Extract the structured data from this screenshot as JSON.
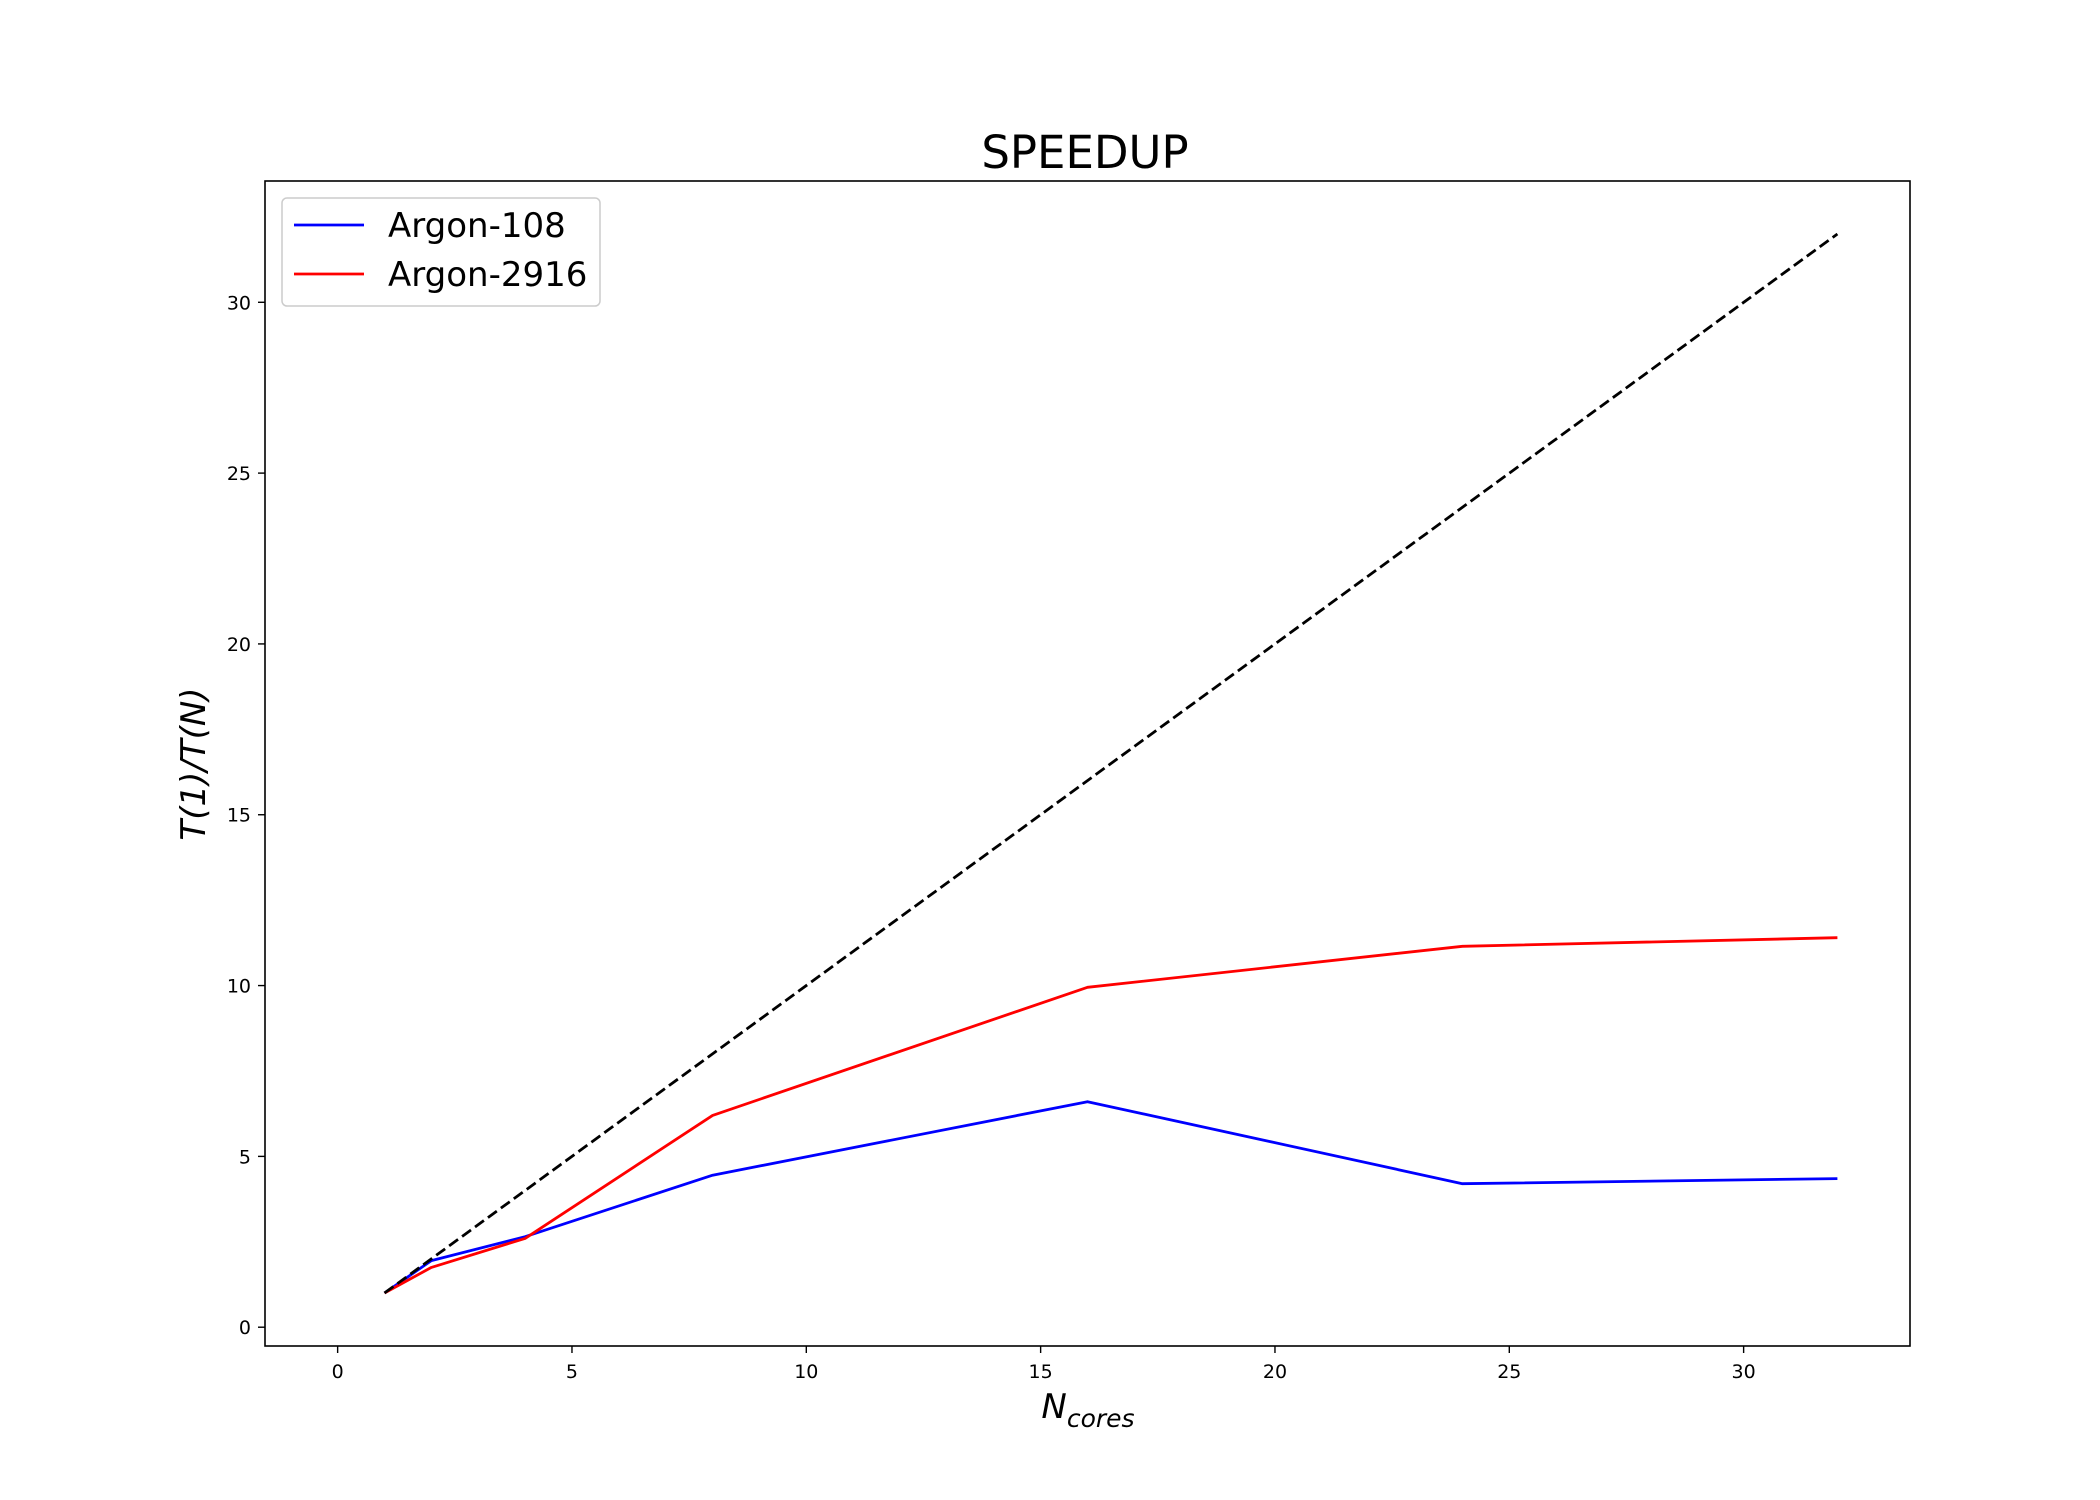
{
  "chart_data": {
    "type": "line",
    "title": "SPEEDUP",
    "xlabel": {
      "main": "N",
      "sub": "cores"
    },
    "ylabel": "T(1)/T(N)",
    "xlim": [
      -1.55,
      33.55
    ],
    "ylim": [
      -0.55,
      33.55
    ],
    "xticks": [
      0,
      5,
      10,
      15,
      20,
      25,
      30
    ],
    "yticks": [
      0,
      5,
      10,
      15,
      20,
      25,
      30
    ],
    "grid": false,
    "legend_position": "top-left",
    "series": [
      {
        "name": "Argon-108",
        "color": "#0000ff",
        "style": "solid",
        "x": [
          1,
          2,
          4,
          8,
          16,
          24,
          32
        ],
        "y": [
          1.0,
          1.95,
          2.65,
          4.45,
          6.6,
          4.2,
          4.35
        ]
      },
      {
        "name": "Argon-2916",
        "color": "#ff0000",
        "style": "solid",
        "x": [
          1,
          2,
          4,
          8,
          16,
          24,
          32
        ],
        "y": [
          1.0,
          1.75,
          2.6,
          6.2,
          9.95,
          11.15,
          11.4
        ]
      },
      {
        "name": "",
        "color": "#000000",
        "style": "dashed",
        "x": [
          1,
          32
        ],
        "y": [
          1,
          32
        ]
      }
    ]
  }
}
